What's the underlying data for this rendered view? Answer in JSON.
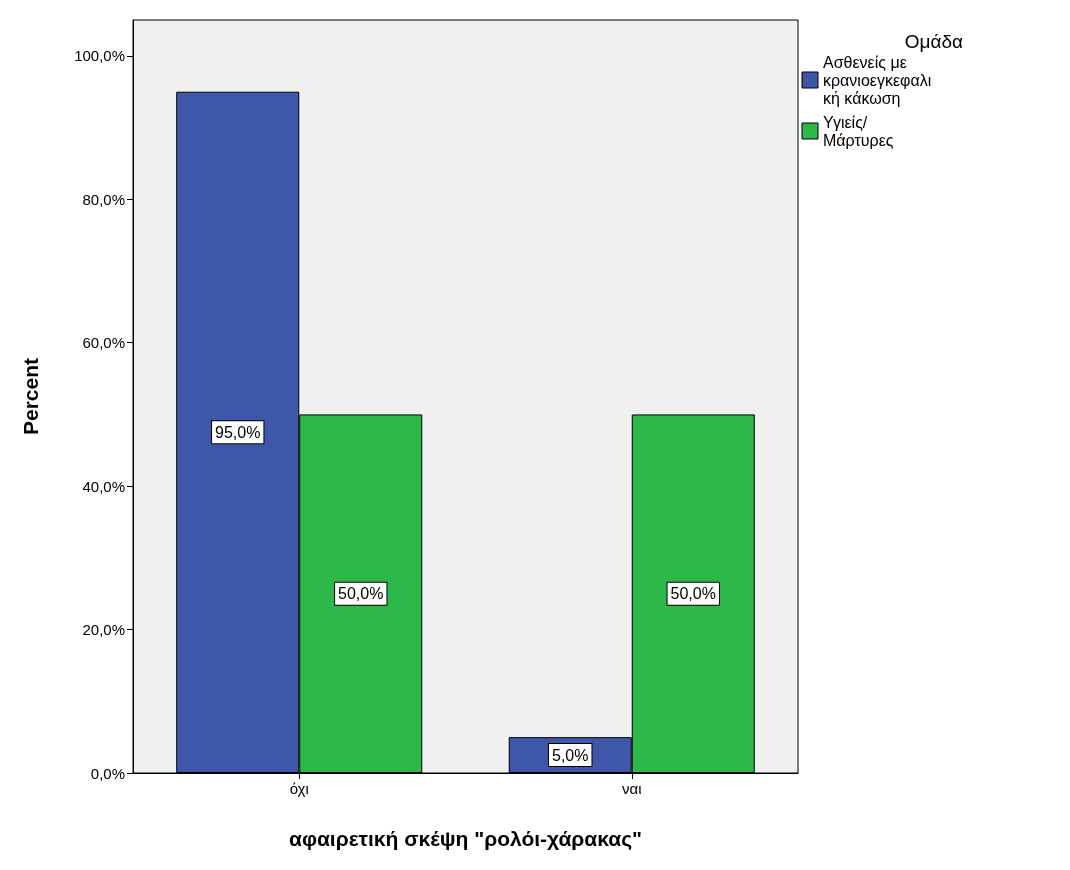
{
  "chart_data": {
    "type": "bar",
    "xlabel": "αφαιρετική σκέψη \"ρολόι-χάρακας\"",
    "ylabel": "Percent",
    "legend_title": "Ομάδα",
    "legend": "top right",
    "grid": false,
    "categories": [
      "όχι",
      "ναι"
    ],
    "series": [
      {
        "name": "Ασθενείς με κρανιοεγκεφαλική κάκωση",
        "color": "#3f57a9",
        "values": [
          95,
          5
        ],
        "value_labels": [
          "95,0%",
          "5,0%"
        ]
      },
      {
        "name": "Υγιείς/ Μάρτυρες",
        "color": "#2fb84a",
        "values": [
          50,
          50
        ],
        "value_labels": [
          "50,0%",
          "50,0%"
        ]
      }
    ],
    "ylim": [
      0,
      105
    ],
    "yticks": [
      {
        "value": 0,
        "label": "0,0%"
      },
      {
        "value": 20,
        "label": "20,0%"
      },
      {
        "value": 40,
        "label": "40,0%"
      },
      {
        "value": 60,
        "label": "60,0%"
      },
      {
        "value": 80,
        "label": "80,0%"
      },
      {
        "value": 100,
        "label": "100,0%"
      }
    ]
  }
}
